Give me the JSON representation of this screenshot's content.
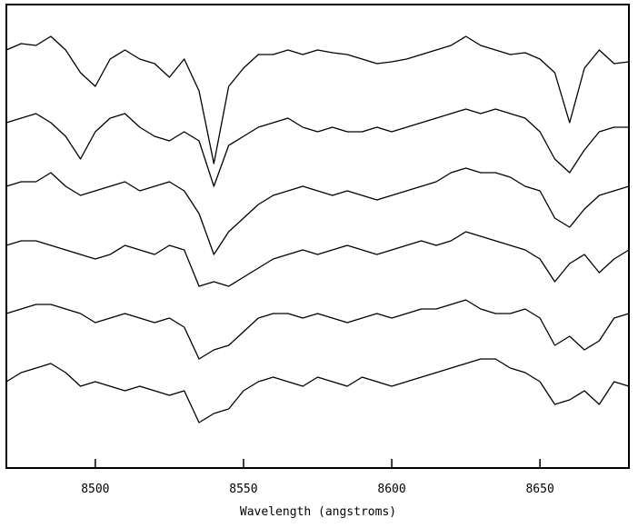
{
  "chart_data": {
    "type": "line",
    "x_label": "Wavelength (angstroms)",
    "x": [
      8470,
      8475,
      8480,
      8485,
      8490,
      8495,
      8500,
      8505,
      8510,
      8515,
      8520,
      8525,
      8530,
      8535,
      8540,
      8545,
      8550,
      8555,
      8560,
      8565,
      8570,
      8575,
      8580,
      8585,
      8590,
      8595,
      8600,
      8605,
      8610,
      8615,
      8620,
      8625,
      8630,
      8635,
      8640,
      8645,
      8650,
      8655,
      8660,
      8665,
      8670,
      8675,
      8680
    ],
    "xlim": [
      8470,
      8680
    ],
    "xticks": [
      8500,
      8550,
      8600,
      8650
    ],
    "ylim": [
      0,
      510
    ],
    "grid": false,
    "series": [
      {
        "color": "#000000",
        "values": [
          460,
          467,
          465,
          475,
          460,
          435,
          420,
          450,
          460,
          450,
          445,
          430,
          450,
          415,
          335,
          420,
          440,
          455,
          455,
          460,
          455,
          460,
          457,
          455,
          450,
          445,
          447,
          450,
          455,
          460,
          465,
          475,
          465,
          460,
          455,
          457,
          450,
          435,
          380,
          440,
          460,
          445,
          447
        ]
      },
      {
        "color": "#000000",
        "values": [
          380,
          385,
          390,
          380,
          365,
          340,
          370,
          385,
          390,
          375,
          365,
          360,
          370,
          360,
          310,
          355,
          365,
          375,
          380,
          385,
          375,
          370,
          375,
          370,
          370,
          375,
          370,
          375,
          380,
          385,
          390,
          395,
          390,
          395,
          390,
          385,
          370,
          340,
          325,
          350,
          370,
          375,
          375
        ]
      },
      {
        "color": "#000000",
        "values": [
          310,
          315,
          315,
          325,
          310,
          300,
          305,
          310,
          315,
          305,
          310,
          315,
          305,
          280,
          235,
          260,
          275,
          290,
          300,
          305,
          310,
          305,
          300,
          305,
          300,
          295,
          300,
          305,
          310,
          315,
          325,
          330,
          325,
          325,
          320,
          310,
          305,
          275,
          265,
          285,
          300,
          305,
          310
        ]
      },
      {
        "color": "#000000",
        "values": [
          245,
          250,
          250,
          245,
          240,
          235,
          230,
          235,
          245,
          240,
          235,
          245,
          240,
          200,
          205,
          200,
          210,
          220,
          230,
          235,
          240,
          235,
          240,
          245,
          240,
          235,
          240,
          245,
          250,
          245,
          250,
          260,
          255,
          250,
          245,
          240,
          230,
          205,
          225,
          235,
          215,
          230,
          240
        ]
      },
      {
        "color": "#000000",
        "values": [
          170,
          175,
          180,
          180,
          175,
          170,
          160,
          165,
          170,
          165,
          160,
          165,
          155,
          120,
          130,
          135,
          150,
          165,
          170,
          170,
          165,
          170,
          165,
          160,
          165,
          170,
          165,
          170,
          175,
          175,
          180,
          185,
          175,
          170,
          170,
          175,
          165,
          135,
          145,
          130,
          140,
          165,
          170
        ]
      },
      {
        "color": "#000000",
        "values": [
          95,
          105,
          110,
          115,
          105,
          90,
          95,
          90,
          85,
          90,
          85,
          80,
          85,
          50,
          60,
          65,
          85,
          95,
          100,
          95,
          90,
          100,
          95,
          90,
          100,
          95,
          90,
          95,
          100,
          105,
          110,
          115,
          120,
          120,
          110,
          105,
          95,
          70,
          75,
          85,
          70,
          95,
          90
        ]
      }
    ]
  }
}
